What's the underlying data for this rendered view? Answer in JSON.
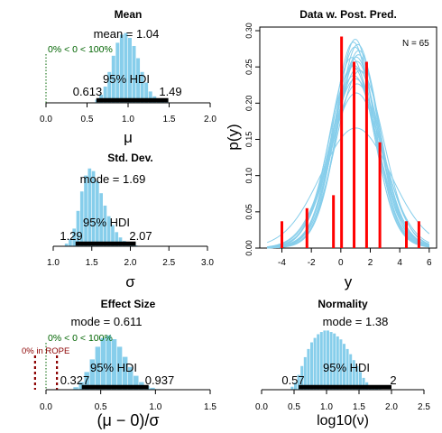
{
  "chart_data": [
    {
      "type": "bar",
      "title": "Mean",
      "xlabel": "μ",
      "xlim": [
        0,
        2
      ],
      "xticks": [
        "0.0",
        "0.5",
        "1.0",
        "1.5",
        "2.0"
      ],
      "bin_width": 0.05,
      "bin_start": 0.6,
      "heights": [
        0.04,
        0.1,
        0.2,
        0.38,
        0.58,
        0.74,
        0.84,
        0.86,
        0.8,
        0.7,
        0.55,
        0.38,
        0.25,
        0.14,
        0.08,
        0.04,
        0.02,
        0.01
      ],
      "annotations": {
        "central": "mean = 1.04",
        "hdi_label": "95% HDI",
        "hdi_low": "0.613",
        "hdi_high": "1.49",
        "compare": "0% < 0 < 100%"
      },
      "hdi": [
        0.613,
        1.49
      ],
      "compare_value": 0
    },
    {
      "type": "bar",
      "title": "Std. Dev.",
      "xlabel": "σ",
      "xlim": [
        1.0,
        3.0
      ],
      "xticks": [
        "1.0",
        "1.5",
        "2.0",
        "2.5",
        "3.0"
      ],
      "bin_width": 0.05,
      "bin_start": 1.15,
      "heights": [
        0.03,
        0.08,
        0.2,
        0.4,
        0.62,
        0.8,
        0.88,
        0.85,
        0.74,
        0.6,
        0.46,
        0.34,
        0.24,
        0.16,
        0.1,
        0.06,
        0.04,
        0.02,
        0.01
      ],
      "annotations": {
        "central": "mode = 1.69",
        "hdi_label": "95% HDI",
        "hdi_low": "1.29",
        "hdi_high": "2.07"
      },
      "hdi": [
        1.29,
        2.07
      ]
    },
    {
      "type": "bar",
      "title": "Effect Size",
      "xlabel": "(μ − 0)/σ",
      "xlim": [
        0,
        1.5
      ],
      "xticks": [
        "0.0",
        "0.5",
        "1.0",
        "1.5"
      ],
      "bin_width": 0.05,
      "bin_start": 0.25,
      "heights": [
        0.04,
        0.12,
        0.28,
        0.48,
        0.68,
        0.82,
        0.86,
        0.8,
        0.68,
        0.52,
        0.36,
        0.22,
        0.12,
        0.06,
        0.03,
        0.01
      ],
      "annotations": {
        "central": "mode = 0.611",
        "hdi_label": "95% HDI",
        "hdi_low": "0.327",
        "hdi_high": "0.937",
        "compare": "0% < 0 < 100%",
        "rope": "0% in ROPE"
      },
      "hdi": [
        0.327,
        0.937
      ],
      "compare_value": 0,
      "rope": [
        -0.1,
        0.1
      ]
    },
    {
      "type": "bar",
      "title": "Normality",
      "xlabel": "log10(ν)",
      "xlim": [
        0,
        2.5
      ],
      "xticks": [
        "0.0",
        "0.5",
        "1.0",
        "1.5",
        "2.0",
        "2.5"
      ],
      "bin_width": 0.05,
      "bin_start": 0.45,
      "heights": [
        0.04,
        0.1,
        0.2,
        0.32,
        0.44,
        0.55,
        0.64,
        0.7,
        0.75,
        0.78,
        0.8,
        0.8,
        0.78,
        0.76,
        0.72,
        0.68,
        0.62,
        0.55,
        0.48,
        0.4,
        0.32,
        0.24,
        0.16,
        0.1,
        0.06,
        0.03,
        0.02,
        0.01
      ],
      "annotations": {
        "central": "mode = 1.38",
        "hdi_label": "95% HDI",
        "hdi_low": "0.57",
        "hdi_high": "2"
      },
      "hdi": [
        0.57,
        2.0
      ]
    },
    {
      "type": "line",
      "title": "Data w. Post. Pred.",
      "xlabel": "y",
      "ylabel": "p(y)",
      "xlim": [
        -5.5,
        6.5
      ],
      "ylim": [
        0,
        0.305
      ],
      "xticks": [
        "-4",
        "-2",
        "0",
        "2",
        "4",
        "6"
      ],
      "yticks": [
        "0.00",
        "0.05",
        "0.10",
        "0.15",
        "0.20",
        "0.25",
        "0.30"
      ],
      "n_label": "N = 65",
      "data_bars": {
        "x": [
          -4.0,
          -2.3,
          -0.5,
          0.05,
          0.9,
          1.75,
          2.65,
          4.45,
          5.3
        ],
        "y": [
          0.037,
          0.055,
          0.073,
          0.292,
          0.257,
          0.257,
          0.146,
          0.037,
          0.037
        ]
      },
      "pred_curves": [
        {
          "mu": 1.04,
          "sigma": 1.5,
          "nu": 30
        },
        {
          "mu": 0.95,
          "sigma": 1.42,
          "nu": 20
        },
        {
          "mu": 1.12,
          "sigma": 1.6,
          "nu": 40
        },
        {
          "mu": 0.85,
          "sigma": 1.38,
          "nu": 15
        },
        {
          "mu": 1.2,
          "sigma": 1.48,
          "nu": 25
        },
        {
          "mu": 1.0,
          "sigma": 1.7,
          "nu": 60
        },
        {
          "mu": 0.9,
          "sigma": 1.55,
          "nu": 12
        },
        {
          "mu": 1.15,
          "sigma": 1.4,
          "nu": 18
        },
        {
          "mu": 1.3,
          "sigma": 1.62,
          "nu": 50
        },
        {
          "mu": 0.75,
          "sigma": 1.5,
          "nu": 22
        },
        {
          "mu": 1.05,
          "sigma": 1.85,
          "nu": 35
        },
        {
          "mu": 0.98,
          "sigma": 1.35,
          "nu": 10
        },
        {
          "mu": 1.1,
          "sigma": 1.75,
          "nu": 45
        },
        {
          "mu": 1.22,
          "sigma": 1.45,
          "nu": 28
        },
        {
          "mu": 0.88,
          "sigma": 1.65,
          "nu": 16
        },
        {
          "mu": 1.02,
          "sigma": 2.4,
          "nu": 80
        },
        {
          "mu": 1.08,
          "sigma": 1.52,
          "nu": 14
        },
        {
          "mu": 0.8,
          "sigma": 1.58,
          "nu": 33
        }
      ]
    }
  ],
  "colors": {
    "histogram": "#87ceeb",
    "hdi_bar": "#000000",
    "data_bars": "#ff0000",
    "pred_curves": "#87ceeb",
    "compare_text": "#006400",
    "rope_text": "#8b0000"
  }
}
